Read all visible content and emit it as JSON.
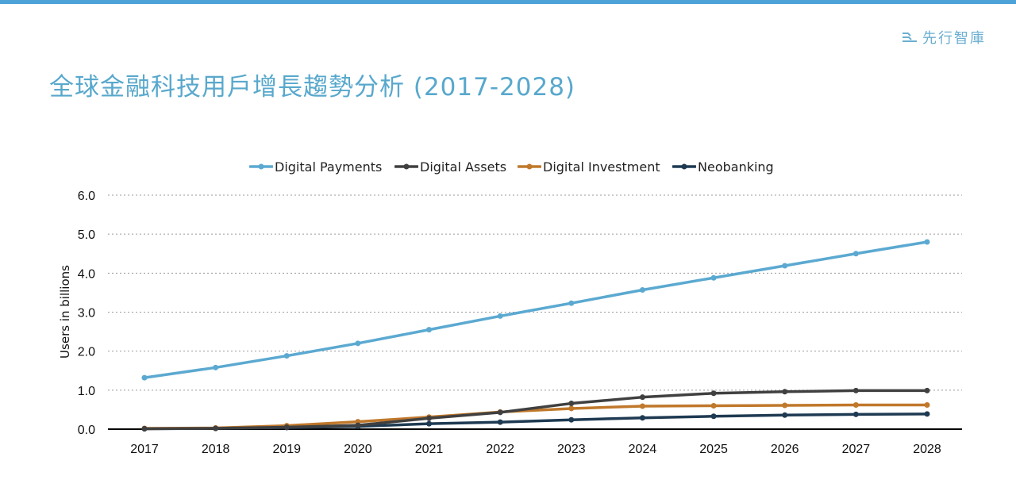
{
  "page": {
    "accent_color": "#4da3d8"
  },
  "brand": {
    "icon": "brand-mark-icon",
    "name": "先行智庫"
  },
  "title": "全球金融科技用戶增長趨勢分析 (2017-2028)",
  "chart_data": {
    "type": "line",
    "title": "",
    "xlabel": "",
    "ylabel": "Users in billions",
    "categories": [
      "2017",
      "2018",
      "2019",
      "2020",
      "2021",
      "2022",
      "2023",
      "2024",
      "2025",
      "2026",
      "2027",
      "2028"
    ],
    "ylim": [
      0,
      6
    ],
    "yticks": [
      "0.0",
      "1.0",
      "2.0",
      "3.0",
      "4.0",
      "5.0",
      "6.0"
    ],
    "grid": true,
    "grid_style": "dotted",
    "legend_position": "top",
    "series": [
      {
        "name": "Digital Payments",
        "color": "#5ba9d1",
        "values": [
          1.32,
          1.58,
          1.88,
          2.2,
          2.55,
          2.9,
          3.23,
          3.57,
          3.88,
          4.19,
          4.5,
          4.8
        ]
      },
      {
        "name": "Digital Assets",
        "color": "#404040",
        "values": [
          0.01,
          0.02,
          0.05,
          0.1,
          0.28,
          0.43,
          0.66,
          0.82,
          0.92,
          0.96,
          0.99,
          0.99
        ]
      },
      {
        "name": "Digital Investment",
        "color": "#c0782b",
        "values": [
          0.02,
          0.03,
          0.09,
          0.19,
          0.31,
          0.44,
          0.53,
          0.59,
          0.6,
          0.61,
          0.62,
          0.62
        ]
      },
      {
        "name": "Neobanking",
        "color": "#1e3a52",
        "values": [
          0.01,
          0.02,
          0.04,
          0.07,
          0.14,
          0.18,
          0.24,
          0.29,
          0.33,
          0.36,
          0.38,
          0.39
        ]
      }
    ]
  }
}
